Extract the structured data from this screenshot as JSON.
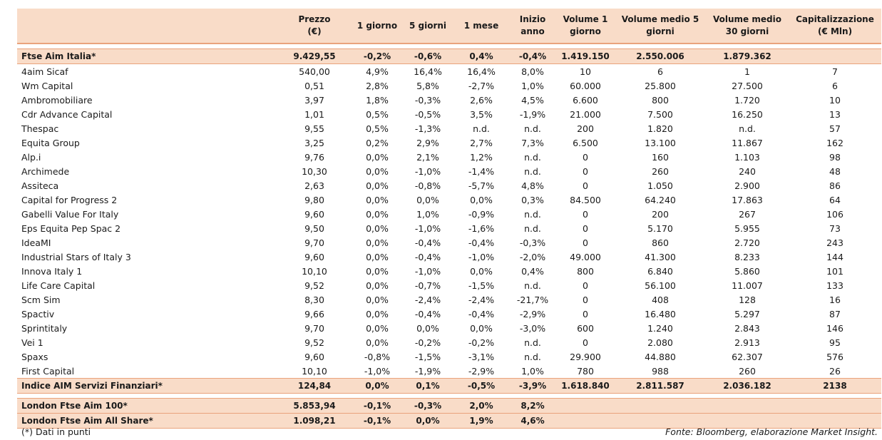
{
  "headers": [
    "",
    "Prezzo\n(€)",
    "1 giorno",
    "5 giorni",
    "1 mese",
    "Inizio anno",
    "Volume 1\ngiorno",
    "Volume medio 5\ngiorni",
    "Volume medio\n30 giorni",
    "Capitalizzazione\n(€ Mln)"
  ],
  "index_top": [
    "Ftse Aim Italia*",
    "9.429,55",
    "-0,2%",
    "-0,6%",
    "0,4%",
    "-0,4%",
    "1.419.150",
    "2.550.006",
    "1.879.362",
    ""
  ],
  "rows": [
    [
      "4aim Sicaf",
      "540,00",
      "4,9%",
      "16,4%",
      "16,4%",
      "8,0%",
      "10",
      "6",
      "1",
      "7"
    ],
    [
      "Wm Capital",
      "0,51",
      "2,8%",
      "5,8%",
      "-2,7%",
      "1,0%",
      "60.000",
      "25.800",
      "27.500",
      "6"
    ],
    [
      "Ambromobiliare",
      "3,97",
      "1,8%",
      "-0,3%",
      "2,6%",
      "4,5%",
      "6.600",
      "800",
      "1.720",
      "10"
    ],
    [
      "Cdr Advance Capital",
      "1,01",
      "0,5%",
      "-0,5%",
      "3,5%",
      "-1,9%",
      "21.000",
      "7.500",
      "16.250",
      "13"
    ],
    [
      "Thespac",
      "9,55",
      "0,5%",
      "-1,3%",
      "n.d.",
      "n.d.",
      "200",
      "1.820",
      "n.d.",
      "57"
    ],
    [
      "Equita Group",
      "3,25",
      "0,2%",
      "2,9%",
      "2,7%",
      "7,3%",
      "6.500",
      "13.100",
      "11.867",
      "162"
    ],
    [
      "Alp.i",
      "9,76",
      "0,0%",
      "2,1%",
      "1,2%",
      "n.d.",
      "0",
      "160",
      "1.103",
      "98"
    ],
    [
      "Archimede",
      "10,30",
      "0,0%",
      "-1,0%",
      "-1,4%",
      "n.d.",
      "0",
      "260",
      "240",
      "48"
    ],
    [
      "Assiteca",
      "2,63",
      "0,0%",
      "-0,8%",
      "-5,7%",
      "4,8%",
      "0",
      "1.050",
      "2.900",
      "86"
    ],
    [
      "Capital for Progress 2",
      "9,80",
      "0,0%",
      "0,0%",
      "0,0%",
      "0,3%",
      "84.500",
      "64.240",
      "17.863",
      "64"
    ],
    [
      "Gabelli Value For Italy",
      "9,60",
      "0,0%",
      "1,0%",
      "-0,9%",
      "n.d.",
      "0",
      "200",
      "267",
      "106"
    ],
    [
      "Eps Equita Pep Spac 2",
      "9,50",
      "0,0%",
      "-1,0%",
      "-1,6%",
      "n.d.",
      "0",
      "5.170",
      "5.955",
      "73"
    ],
    [
      "IdeaMI",
      "9,70",
      "0,0%",
      "-0,4%",
      "-0,4%",
      "-0,3%",
      "0",
      "860",
      "2.720",
      "243"
    ],
    [
      "Industrial Stars of Italy 3",
      "9,60",
      "0,0%",
      "-0,4%",
      "-1,0%",
      "-2,0%",
      "49.000",
      "41.300",
      "8.233",
      "144"
    ],
    [
      "Innova Italy 1",
      "10,10",
      "0,0%",
      "-1,0%",
      "0,0%",
      "0,4%",
      "800",
      "6.840",
      "5.860",
      "101"
    ],
    [
      "Life Care Capital",
      "9,52",
      "0,0%",
      "-0,7%",
      "-1,5%",
      "n.d.",
      "0",
      "56.100",
      "11.007",
      "133"
    ],
    [
      "Scm Sim",
      "8,30",
      "0,0%",
      "-2,4%",
      "-2,4%",
      "-21,7%",
      "0",
      "408",
      "128",
      "16"
    ],
    [
      "Spactiv",
      "9,66",
      "0,0%",
      "-0,4%",
      "-0,4%",
      "-2,9%",
      "0",
      "16.480",
      "5.297",
      "87"
    ],
    [
      "Sprintitaly",
      "9,70",
      "0,0%",
      "0,0%",
      "0,0%",
      "-3,0%",
      "600",
      "1.240",
      "2.843",
      "146"
    ],
    [
      "Vei 1",
      "9,52",
      "0,0%",
      "-0,2%",
      "-0,2%",
      "n.d.",
      "0",
      "2.080",
      "2.913",
      "95"
    ],
    [
      "Spaxs",
      "9,60",
      "-0,8%",
      "-1,5%",
      "-3,1%",
      "n.d.",
      "29.900",
      "44.880",
      "62.307",
      "576"
    ],
    [
      "First Capital",
      "10,10",
      "-1,0%",
      "-1,9%",
      "-2,9%",
      "1,0%",
      "780",
      "988",
      "260",
      "26"
    ]
  ],
  "index_sector": [
    "Indice AIM Servizi Finanziari*",
    "124,84",
    "0,0%",
    "0,1%",
    "-0,5%",
    "-3,9%",
    "1.618.840",
    "2.811.587",
    "2.036.182",
    "2138"
  ],
  "london": [
    [
      "London Ftse Aim 100*",
      "5.853,94",
      "-0,1%",
      "-0,3%",
      "2,0%",
      "8,2%",
      "",
      "",
      "",
      ""
    ],
    [
      "London Ftse Aim All Share*",
      "1.098,21",
      "-0,1%",
      "0,0%",
      "1,9%",
      "4,6%",
      "",
      "",
      "",
      ""
    ]
  ],
  "footnote": "(*) Dati in punti",
  "source": "Fonte: Bloomberg, elaborazione Market Insight."
}
